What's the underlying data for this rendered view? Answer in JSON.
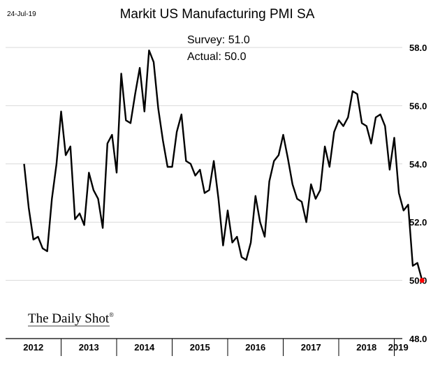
{
  "header": {
    "date": "24-Jul-19",
    "title": "Markit US Manufacturing PMI SA"
  },
  "annotation": {
    "survey": "Survey: 51.0",
    "actual": "Actual:  50.0"
  },
  "brand": {
    "name": "The Daily Shot",
    "mark": "®"
  },
  "colors": {
    "line": "#000000",
    "grid": "#d9d9d9",
    "highlight": "#ff0000"
  },
  "chart_data": {
    "type": "line",
    "title": "Markit US Manufacturing PMI SA",
    "xlabel": "",
    "ylabel": "",
    "ylim": [
      48,
      58.5
    ],
    "yticks": [
      "48.0",
      "50.0",
      "52.0",
      "54.0",
      "56.0",
      "58.0"
    ],
    "ytick_values": [
      48,
      50,
      52,
      54,
      56,
      58
    ],
    "y_axis_position": "right",
    "grid": true,
    "x_categories": [
      "2012",
      "2013",
      "2014",
      "2015",
      "2016",
      "2017",
      "2018",
      "2019"
    ],
    "x_range": [
      "2012-05",
      "2019-07"
    ],
    "series": [
      {
        "highlight_last": true,
        "x": [
          "2012-05",
          "2012-06",
          "2012-07",
          "2012-08",
          "2012-09",
          "2012-10",
          "2012-11",
          "2012-12",
          "2013-01",
          "2013-02",
          "2013-03",
          "2013-04",
          "2013-05",
          "2013-06",
          "2013-07",
          "2013-08",
          "2013-09",
          "2013-10",
          "2013-11",
          "2013-12",
          "2014-01",
          "2014-02",
          "2014-03",
          "2014-04",
          "2014-05",
          "2014-06",
          "2014-07",
          "2014-08",
          "2014-09",
          "2014-10",
          "2014-11",
          "2014-12",
          "2015-01",
          "2015-02",
          "2015-03",
          "2015-04",
          "2015-05",
          "2015-06",
          "2015-07",
          "2015-08",
          "2015-09",
          "2015-10",
          "2015-11",
          "2015-12",
          "2016-01",
          "2016-02",
          "2016-03",
          "2016-04",
          "2016-05",
          "2016-06",
          "2016-07",
          "2016-08",
          "2016-09",
          "2016-10",
          "2016-11",
          "2016-12",
          "2017-01",
          "2017-02",
          "2017-03",
          "2017-04",
          "2017-05",
          "2017-06",
          "2017-07",
          "2017-08",
          "2017-09",
          "2017-10",
          "2017-11",
          "2017-12",
          "2018-01",
          "2018-02",
          "2018-03",
          "2018-04",
          "2018-05",
          "2018-06",
          "2018-07",
          "2018-08",
          "2018-09",
          "2018-10",
          "2018-11",
          "2018-12",
          "2019-01",
          "2019-02",
          "2019-03",
          "2019-04",
          "2019-05",
          "2019-06",
          "2019-07"
        ],
        "values": [
          54.0,
          52.5,
          51.4,
          51.5,
          51.1,
          51.0,
          52.8,
          54.0,
          55.8,
          54.3,
          54.6,
          52.1,
          52.3,
          51.9,
          53.7,
          53.1,
          52.8,
          51.8,
          54.7,
          55.0,
          53.7,
          57.1,
          55.5,
          55.4,
          56.4,
          57.3,
          55.8,
          57.9,
          57.5,
          55.9,
          54.8,
          53.9,
          53.9,
          55.1,
          55.7,
          54.1,
          54.0,
          53.6,
          53.8,
          53.0,
          53.1,
          54.1,
          52.8,
          51.2,
          52.4,
          51.3,
          51.5,
          50.8,
          50.7,
          51.3,
          52.9,
          52.0,
          51.5,
          53.4,
          54.1,
          54.3,
          55.0,
          54.2,
          53.3,
          52.8,
          52.7,
          52.0,
          53.3,
          52.8,
          53.1,
          54.6,
          53.9,
          55.1,
          55.5,
          55.3,
          55.6,
          56.5,
          56.4,
          55.4,
          55.3,
          54.7,
          55.6,
          55.7,
          55.3,
          53.8,
          54.9,
          53.0,
          52.4,
          52.6,
          50.5,
          50.6,
          50.0
        ]
      }
    ]
  }
}
